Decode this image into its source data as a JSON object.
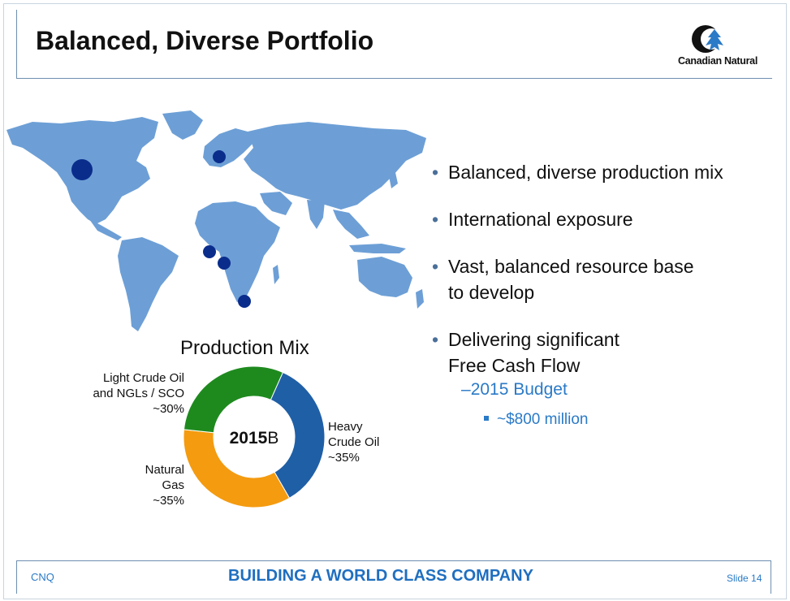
{
  "header": {
    "title": "Balanced, Diverse Portfolio",
    "logo_text": "Canadian Natural"
  },
  "bullets": [
    {
      "line1": "Balanced, diverse production mix",
      "line2": ""
    },
    {
      "line1": "International exposure",
      "line2": ""
    },
    {
      "line1": "Vast, balanced resource base",
      "line2": "to develop"
    },
    {
      "line1": "Delivering significant",
      "line2": "Free Cash Flow"
    }
  ],
  "sub_bullet": {
    "dash": "–",
    "text": "2015 Budget"
  },
  "sub_sub_bullet": {
    "text": "~$800 million"
  },
  "chart_data": {
    "type": "pie",
    "title": "Production Mix",
    "center_label_bold": "2015",
    "center_label_normal": "B",
    "slices": [
      {
        "label": "Heavy Crude Oil",
        "label_lines": [
          "Heavy",
          "Crude Oil",
          "~35%"
        ],
        "value": 35,
        "color": "#1f5fa6"
      },
      {
        "label": "Natural Gas",
        "label_lines": [
          "Natural",
          "Gas",
          "~35%"
        ],
        "value": 35,
        "color": "#f49b10"
      },
      {
        "label": "Light Crude Oil and NGLs / SCO",
        "label_lines": [
          "Light Crude Oil",
          "and NGLs / SCO",
          "~30%"
        ],
        "value": 30,
        "color": "#1e8a1e"
      }
    ]
  },
  "map": {
    "land_color": "#6d9fd6",
    "marker_color": "#0a2d8c"
  },
  "footer": {
    "left": "CNQ",
    "center": "BUILDING A WORLD CLASS COMPANY",
    "right": "Slide 14"
  }
}
